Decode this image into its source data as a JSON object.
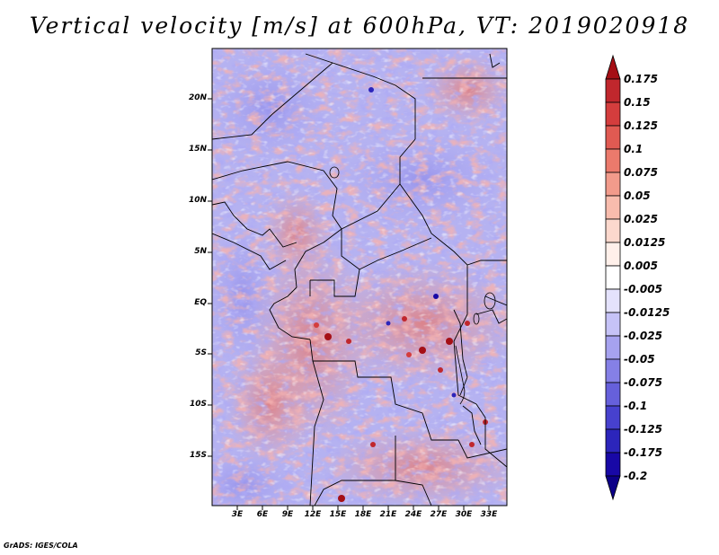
{
  "title": "Vertical velocity [m/s] at 600hPa, VT: 2019020918",
  "credit": "GrADS: IGES/COLA",
  "map": {
    "variable": "Vertical velocity",
    "units": "m/s",
    "level": "600hPa",
    "valid_time": "2019020918",
    "lat_labels": [
      "20N",
      "15N",
      "10N",
      "5N",
      "EQ",
      "5S",
      "10S",
      "15S"
    ],
    "lon_labels": [
      "3E",
      "6E",
      "9E",
      "12E",
      "15E",
      "18E",
      "21E",
      "24E",
      "27E",
      "30E",
      "33E"
    ]
  },
  "colorbar": {
    "labels": [
      "0.175",
      "0.15",
      "0.125",
      "0.1",
      "0.075",
      "0.05",
      "0.025",
      "0.0125",
      "0.005",
      "-0.005",
      "-0.0125",
      "-0.025",
      "-0.05",
      "-0.075",
      "-0.1",
      "-0.125",
      "-0.175",
      "-0.2"
    ],
    "colors": [
      "#a50f15",
      "#c0272d",
      "#d43d3d",
      "#e05a52",
      "#eb7a6c",
      "#f29b8b",
      "#f8bcad",
      "#fcd8cd",
      "#fff0ea",
      "#ffffff",
      "#e4e2fc",
      "#c6c3f7",
      "#a6a2ef",
      "#8580e6",
      "#6660db",
      "#4741ce",
      "#2c25bb",
      "#1808a6",
      "#0c0088"
    ]
  }
}
